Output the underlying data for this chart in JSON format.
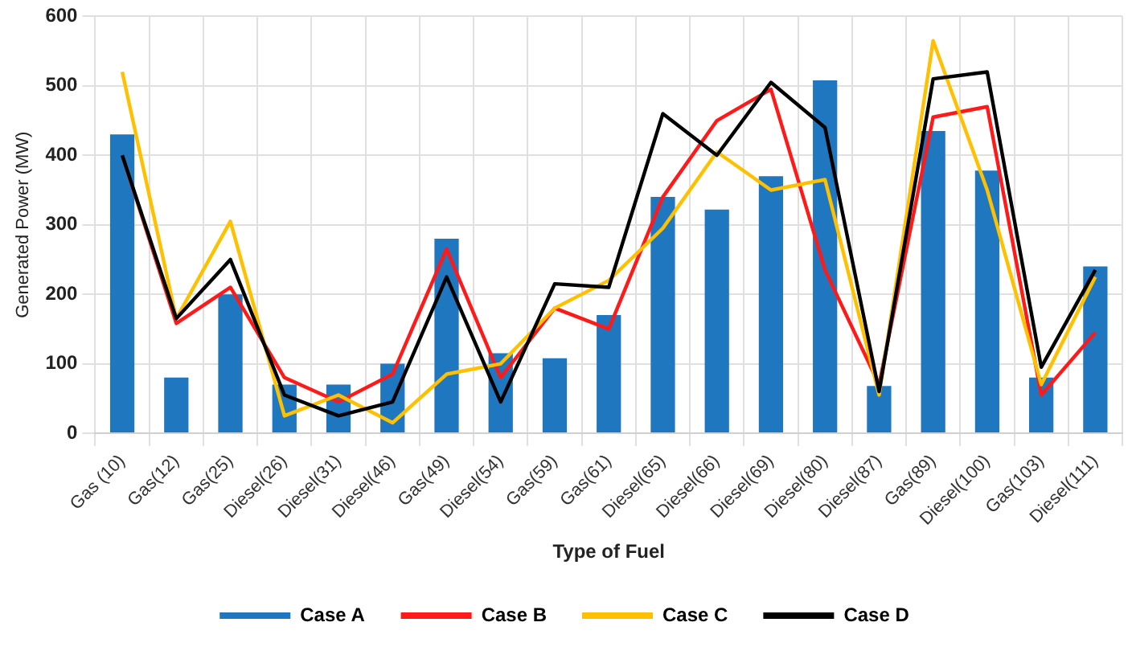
{
  "chart_data": {
    "type": "bar",
    "xlabel": "Type of Fuel",
    "ylabel": "Generated Power (MW)",
    "categories": [
      "Gas (10)",
      "Gas(12)",
      "Gas(25)",
      "Diesel(26)",
      "Diesel(31)",
      "Diesel(46)",
      "Gas(49)",
      "Diesel(54)",
      "Gas(59)",
      "Gas(61)",
      "Diesel(65)",
      "Diesel(66)",
      "Diesel(69)",
      "Diesel(80)",
      "Diesel(87)",
      "Gas(89)",
      "Diesel(100)",
      "Gas(103)",
      "Diesel(111)"
    ],
    "series": [
      {
        "name": "Case A",
        "color": "#1f77c0",
        "values": [
          430,
          80,
          200,
          70,
          70,
          100,
          280,
          115,
          108,
          170,
          340,
          322,
          370,
          508,
          68,
          435,
          378,
          80,
          240
        ]
      },
      {
        "name": "Case B",
        "type": "line",
        "color": "#ff1a1a",
        "values": [
          400,
          158,
          210,
          80,
          45,
          85,
          265,
          80,
          180,
          150,
          340,
          450,
          495,
          235,
          70,
          455,
          470,
          55,
          145
        ]
      },
      {
        "name": "Case C",
        "type": "line",
        "color": "#ffc000",
        "values": [
          520,
          165,
          305,
          25,
          55,
          15,
          85,
          100,
          180,
          220,
          295,
          405,
          350,
          365,
          55,
          565,
          350,
          70,
          225
        ]
      },
      {
        "name": "Case D",
        "type": "line",
        "color": "#000000",
        "values": [
          400,
          165,
          250,
          55,
          25,
          45,
          225,
          45,
          215,
          210,
          460,
          400,
          505,
          440,
          60,
          510,
          520,
          95,
          235
        ]
      }
    ],
    "ylim": [
      0,
      600
    ],
    "yticks": [
      0,
      100,
      200,
      300,
      400,
      500,
      600
    ],
    "grid": true,
    "legend": "bottom",
    "marker": "none",
    "line_style": "solid"
  }
}
